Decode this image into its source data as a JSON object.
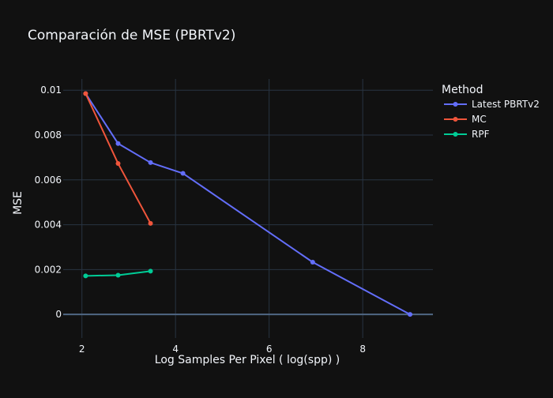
{
  "chart_data": {
    "type": "line",
    "title": "Comparación de MSE (PBRTv2)",
    "xlabel": "Log Samples Per Pixel ( log(spp) )",
    "ylabel": "MSE",
    "xlim": [
      1.6,
      9.5
    ],
    "ylim": [
      -0.00105,
      0.0105
    ],
    "x_ticks": [
      2,
      4,
      6,
      8
    ],
    "x_tick_labels": [
      "2",
      "4",
      "6",
      "8"
    ],
    "y_ticks": [
      0,
      0.002,
      0.004,
      0.006,
      0.008,
      0.01
    ],
    "y_tick_labels": [
      "0",
      "0.002",
      "0.004",
      "0.006",
      "0.008",
      "0.01"
    ],
    "grid": true,
    "legend_title": "Method",
    "legend_position": "top-right",
    "series": [
      {
        "name": "Latest PBRTv2",
        "color": "#636efa",
        "x": [
          2.079,
          2.773,
          3.466,
          4.159,
          6.931,
          9.011
        ],
        "y": [
          0.00985,
          0.00762,
          0.00677,
          0.00629,
          0.00233,
          0.0
        ]
      },
      {
        "name": "MC",
        "color": "#ef553b",
        "x": [
          2.079,
          2.773,
          3.466
        ],
        "y": [
          0.00985,
          0.00673,
          0.00406
        ]
      },
      {
        "name": "RPF",
        "color": "#00cc96",
        "x": [
          2.079,
          2.773,
          3.466
        ],
        "y": [
          0.00172,
          0.00175,
          0.00193
        ]
      }
    ]
  }
}
